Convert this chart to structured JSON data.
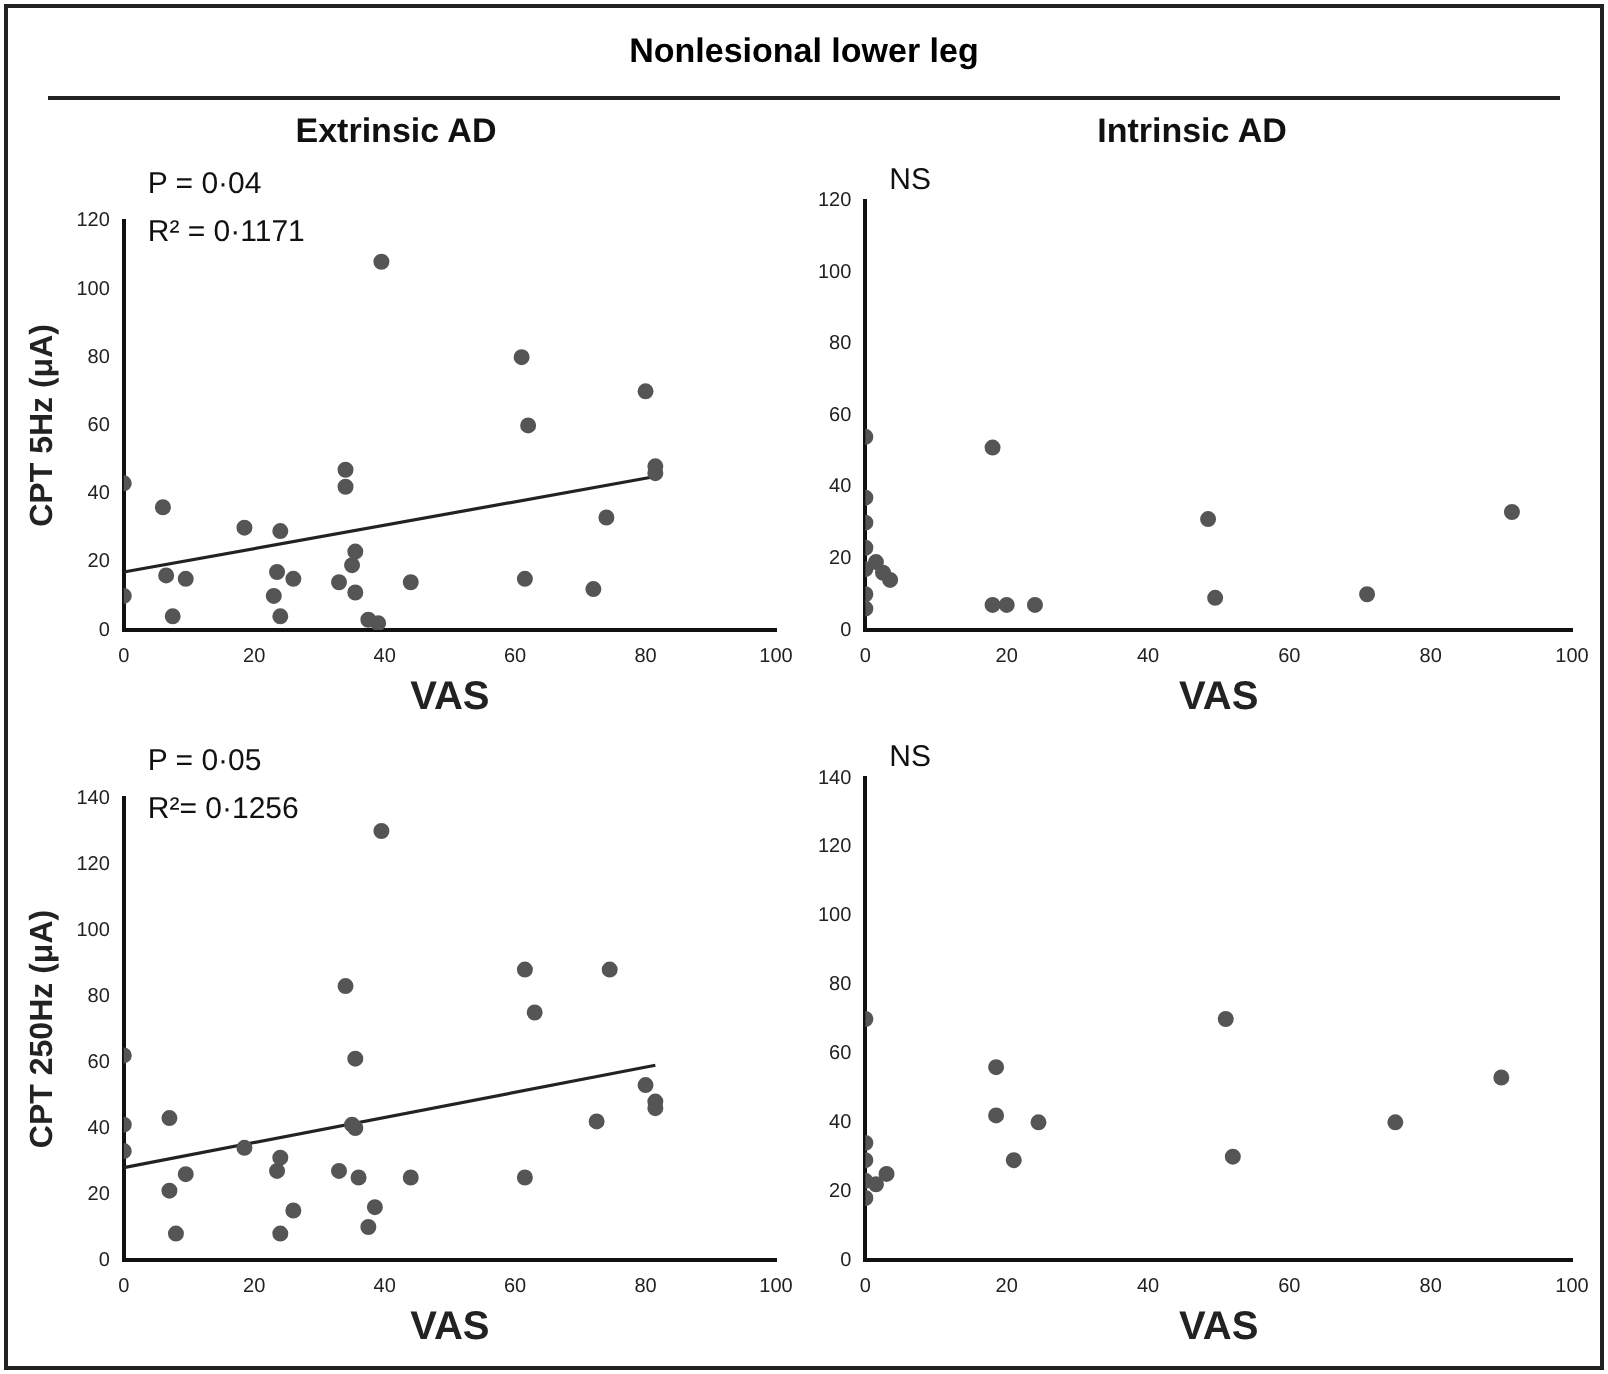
{
  "chart_data": [
    {
      "type": "scatter",
      "title": "Nonlesional lower leg",
      "subtitle": "Extrinsic AD",
      "xlabel": "VAS",
      "ylabel": "CPT 5Hz (μA)",
      "annotations": [
        "P = 0·04",
        "R² = 0·1171"
      ],
      "xlim": [
        0,
        100
      ],
      "xticks": [
        0,
        20,
        40,
        60,
        80,
        100
      ],
      "ylim": [
        0,
        120
      ],
      "yticks": [
        0,
        20,
        40,
        60,
        80,
        100,
        120
      ],
      "grid": false,
      "legend": false,
      "marker": "circle",
      "series": [
        {
          "color": "#555555",
          "x": [
            0,
            0,
            6,
            6.5,
            9.5,
            7.5,
            18.5,
            24,
            23.5,
            23,
            24,
            26,
            34,
            34,
            33,
            35,
            35.5,
            35.5,
            37.5,
            39,
            39.5,
            44,
            61,
            62,
            61.5,
            72,
            74,
            80,
            81.5,
            81.5
          ],
          "values": [
            43,
            10,
            36,
            16,
            15,
            4,
            30,
            29,
            17,
            10,
            4,
            15,
            47,
            42,
            14,
            19,
            23,
            11,
            3,
            2,
            108,
            14,
            80,
            60,
            15,
            12,
            33,
            70,
            48,
            46
          ]
        },
        {
          "type": "line",
          "color": "#222222",
          "marker": "none",
          "x": [
            0,
            81.5
          ],
          "values": [
            17,
            45
          ]
        }
      ]
    },
    {
      "type": "scatter",
      "subtitle": "Intrinsic AD",
      "xlabel": "VAS",
      "annotations": [
        "NS"
      ],
      "xlim": [
        0,
        100
      ],
      "xticks": [
        0,
        20,
        40,
        60,
        80,
        100
      ],
      "ylim": [
        0,
        120
      ],
      "yticks": [
        0,
        20,
        40,
        60,
        80,
        100,
        120
      ],
      "grid": false,
      "legend": false,
      "marker": "circle",
      "series": [
        {
          "color": "#555555",
          "x": [
            0,
            0,
            0,
            0,
            0,
            0,
            0,
            1.5,
            2.5,
            3.5,
            18,
            18,
            20,
            24,
            48.5,
            49.5,
            71,
            91.5
          ],
          "values": [
            54,
            37,
            30,
            23,
            17,
            10,
            6,
            19,
            16,
            14,
            51,
            7,
            7,
            7,
            31,
            9,
            10,
            33
          ]
        }
      ]
    },
    {
      "type": "scatter",
      "xlabel": "VAS",
      "ylabel": "CPT 250Hz (μA)",
      "annotations": [
        "P = 0·05",
        "R²= 0·1256"
      ],
      "xlim": [
        0,
        100
      ],
      "xticks": [
        0,
        20,
        40,
        60,
        80,
        100
      ],
      "ylim": [
        0,
        140
      ],
      "yticks": [
        0,
        20,
        40,
        60,
        80,
        100,
        120,
        140
      ],
      "grid": false,
      "legend": false,
      "marker": "circle",
      "series": [
        {
          "color": "#555555",
          "x": [
            0,
            0,
            0,
            7,
            7,
            8,
            9.5,
            18.5,
            24,
            23.5,
            24,
            26,
            34,
            35.5,
            35.5,
            35,
            33,
            36,
            38.5,
            37.5,
            39.5,
            44,
            61.5,
            63,
            61.5,
            72.5,
            74.5,
            80,
            81.5,
            81.5
          ],
          "values": [
            62,
            41,
            33,
            43,
            21,
            8,
            26,
            34,
            31,
            27,
            8,
            15,
            83,
            61,
            40,
            41,
            27,
            25,
            16,
            10,
            130,
            25,
            88,
            75,
            25,
            42,
            88,
            53,
            48,
            46
          ]
        },
        {
          "type": "line",
          "color": "#222222",
          "marker": "none",
          "x": [
            0,
            81.5
          ],
          "values": [
            28,
            59
          ]
        }
      ]
    },
    {
      "type": "scatter",
      "xlabel": "VAS",
      "annotations": [
        "NS"
      ],
      "xlim": [
        0,
        100
      ],
      "xticks": [
        0,
        20,
        40,
        60,
        80,
        100
      ],
      "ylim": [
        0,
        140
      ],
      "yticks": [
        0,
        20,
        40,
        60,
        80,
        100,
        120,
        140
      ],
      "grid": false,
      "legend": false,
      "marker": "circle",
      "series": [
        {
          "color": "#555555",
          "x": [
            0,
            0,
            0,
            0,
            0,
            1.5,
            3,
            18.5,
            18.5,
            21,
            24.5,
            51,
            52,
            75,
            90
          ],
          "values": [
            70,
            34,
            29,
            23,
            18,
            22,
            25,
            56,
            42,
            29,
            40,
            70,
            30,
            40,
            53
          ]
        }
      ]
    }
  ]
}
